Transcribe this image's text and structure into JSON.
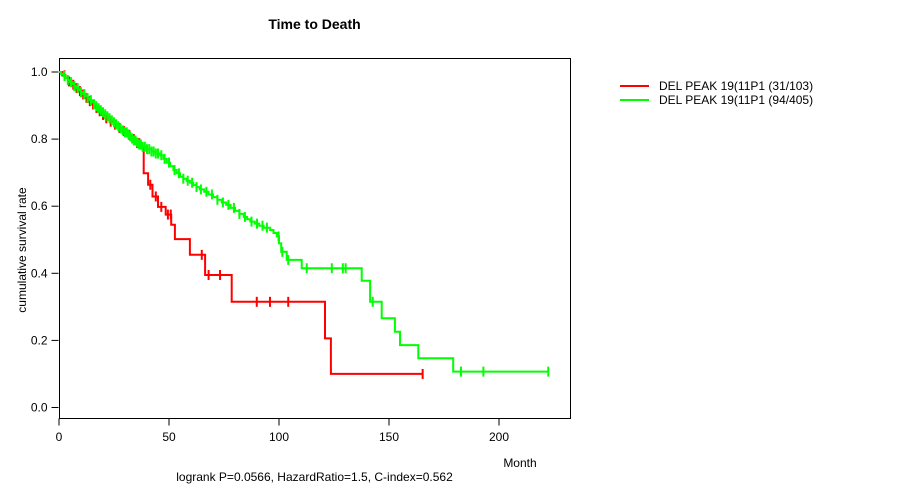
{
  "chart_data": {
    "type": "line",
    "subtype": "kaplan-meier-step",
    "title": "Time to Death",
    "xlabel": "Month",
    "ylabel": "cumulative survival rate",
    "annotation": "logrank P=0.0566, HazardRatio=1.5, C-index=0.562",
    "xticks": [
      0,
      50,
      100,
      150,
      200
    ],
    "ytick_labels": [
      "0.0",
      "0.2",
      "0.4",
      "0.6",
      "0.8",
      "1.0"
    ],
    "xrange": [
      0,
      232
    ],
    "yrange": [
      0,
      1
    ],
    "grid": false,
    "legend_position": "right-outside",
    "axis_color": "#000000",
    "series": [
      {
        "name": "DEL PEAK 19(11P1 (31/103)",
        "color": "#ff0000",
        "events_over_n": "31/103",
        "steps": [
          [
            0,
            1.0
          ],
          [
            1.5,
            0.99
          ],
          [
            3,
            0.982
          ],
          [
            4.5,
            0.972
          ],
          [
            6,
            0.962
          ],
          [
            7.5,
            0.952
          ],
          [
            9,
            0.943
          ],
          [
            10.5,
            0.933
          ],
          [
            12,
            0.923
          ],
          [
            13.5,
            0.913
          ],
          [
            15,
            0.903
          ],
          [
            16.5,
            0.893
          ],
          [
            18,
            0.883
          ],
          [
            19.5,
            0.872
          ],
          [
            21,
            0.862
          ],
          [
            23,
            0.852
          ],
          [
            25,
            0.843
          ],
          [
            27,
            0.833
          ],
          [
            29,
            0.824
          ],
          [
            31,
            0.812
          ],
          [
            33,
            0.8
          ],
          [
            35,
            0.788
          ],
          [
            37,
            0.776
          ],
          [
            38.5,
            0.698
          ],
          [
            40.5,
            0.664
          ],
          [
            42.5,
            0.629
          ],
          [
            45,
            0.598
          ],
          [
            48.5,
            0.575
          ],
          [
            51,
            0.545
          ],
          [
            52.7,
            0.502
          ],
          [
            59.5,
            0.455
          ],
          [
            66.4,
            0.395
          ],
          [
            78.5,
            0.315
          ],
          [
            120.9,
            0.206
          ],
          [
            123.6,
            0.1
          ],
          [
            165.6,
            0.1
          ]
        ],
        "censor_months": [
          2.5,
          4.5,
          6.5,
          8,
          9.5,
          11,
          12.5,
          14,
          15.5,
          17,
          18.5,
          20,
          21.5,
          23.5,
          25.5,
          27.5,
          29.5,
          32,
          34,
          35.5,
          36.5,
          41.5,
          44,
          46.5,
          49.5,
          50.8,
          64.9,
          68,
          73.2,
          89.9,
          95.9,
          104.2,
          165.3
        ]
      },
      {
        "name": "DEL PEAK 19(11P1 (94/405)",
        "color": "#00ff00",
        "events_over_n": "94/405",
        "steps": [
          [
            0,
            1.0
          ],
          [
            1,
            0.994
          ],
          [
            2,
            0.988
          ],
          [
            3,
            0.982
          ],
          [
            4,
            0.976
          ],
          [
            5,
            0.97
          ],
          [
            6,
            0.964
          ],
          [
            7,
            0.958
          ],
          [
            8,
            0.952
          ],
          [
            9,
            0.946
          ],
          [
            10,
            0.94
          ],
          [
            11,
            0.934
          ],
          [
            12,
            0.928
          ],
          [
            13,
            0.922
          ],
          [
            14,
            0.916
          ],
          [
            15,
            0.91
          ],
          [
            16,
            0.904
          ],
          [
            17,
            0.898
          ],
          [
            18,
            0.892
          ],
          [
            19,
            0.886
          ],
          [
            20,
            0.88
          ],
          [
            21,
            0.874
          ],
          [
            22,
            0.868
          ],
          [
            23,
            0.862
          ],
          [
            24,
            0.856
          ],
          [
            25,
            0.85
          ],
          [
            26,
            0.844
          ],
          [
            27,
            0.838
          ],
          [
            28,
            0.832
          ],
          [
            29,
            0.826
          ],
          [
            30,
            0.82
          ],
          [
            31,
            0.814
          ],
          [
            32,
            0.808
          ],
          [
            33,
            0.802
          ],
          [
            34,
            0.796
          ],
          [
            35,
            0.79
          ],
          [
            36,
            0.784
          ],
          [
            38,
            0.777
          ],
          [
            40,
            0.77
          ],
          [
            42,
            0.763
          ],
          [
            44,
            0.757
          ],
          [
            46,
            0.752
          ],
          [
            47.5,
            0.741
          ],
          [
            49,
            0.73
          ],
          [
            50.5,
            0.719
          ],
          [
            52,
            0.708
          ],
          [
            53.5,
            0.698
          ],
          [
            55,
            0.688
          ],
          [
            56.5,
            0.682
          ],
          [
            58,
            0.676
          ],
          [
            59.5,
            0.67
          ],
          [
            61,
            0.663
          ],
          [
            62.5,
            0.657
          ],
          [
            64,
            0.65
          ],
          [
            66,
            0.643
          ],
          [
            68,
            0.635
          ],
          [
            70,
            0.627
          ],
          [
            72,
            0.619
          ],
          [
            74,
            0.611
          ],
          [
            76,
            0.604
          ],
          [
            78,
            0.595
          ],
          [
            80,
            0.586
          ],
          [
            82,
            0.577
          ],
          [
            84,
            0.568
          ],
          [
            85.5,
            0.561
          ],
          [
            87,
            0.554
          ],
          [
            89,
            0.548
          ],
          [
            91,
            0.542
          ],
          [
            93,
            0.536
          ],
          [
            96,
            0.529
          ],
          [
            97.5,
            0.52
          ],
          [
            99,
            0.51
          ],
          [
            100,
            0.489
          ],
          [
            101,
            0.464
          ],
          [
            103.5,
            0.44
          ],
          [
            110.3,
            0.415
          ],
          [
            137.6,
            0.378
          ],
          [
            141.4,
            0.315
          ],
          [
            146.7,
            0.266
          ],
          [
            152.7,
            0.226
          ],
          [
            155,
            0.186
          ],
          [
            163.3,
            0.147
          ],
          [
            179.2,
            0.107
          ],
          [
            222.4,
            0.107
          ]
        ],
        "censor_months": [
          2.5,
          4,
          5.5,
          7,
          8.5,
          10,
          11.5,
          13,
          14.5,
          16,
          17,
          18,
          19,
          20,
          21,
          22,
          23,
          24,
          25,
          26,
          27,
          28,
          29,
          30,
          30.8,
          31.6,
          32.4,
          33.2,
          34,
          34.8,
          35.6,
          36.4,
          37.2,
          38,
          39,
          40,
          41,
          42,
          43,
          44,
          45,
          46.5,
          48,
          50,
          52.5,
          54.5,
          56.5,
          58.5,
          60.5,
          62.5,
          64.5,
          67,
          69.5,
          72,
          74.5,
          77,
          79.5,
          82,
          84.5,
          87.5,
          90,
          92.5,
          94.5,
          99.8,
          101.5,
          104.2,
          112.6,
          124,
          129,
          130.3,
          142.6,
          182.7,
          192.9,
          222.4
        ]
      }
    ]
  }
}
